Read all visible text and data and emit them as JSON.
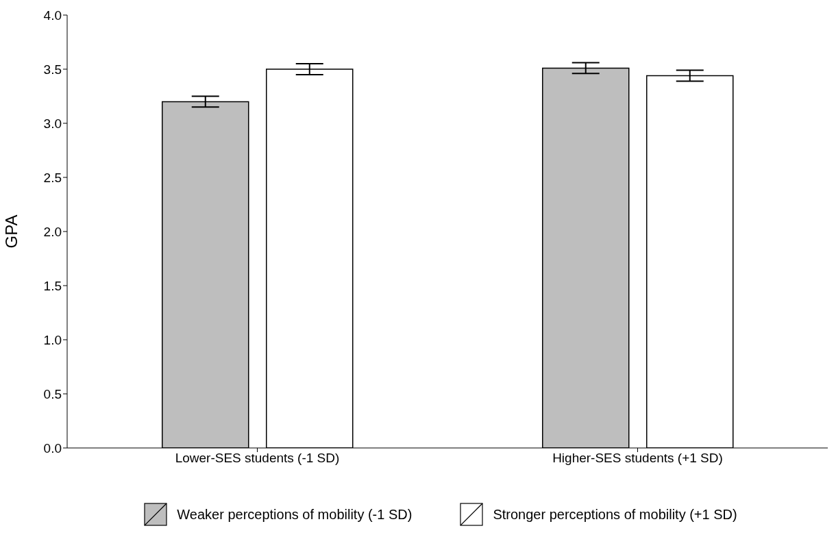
{
  "chart_data": {
    "type": "bar",
    "ylabel": "GPA",
    "categories": [
      "Lower-SES students (-1 SD)",
      "Higher-SES students (+1 SD)"
    ],
    "series": [
      {
        "name": "Weaker perceptions of mobility (-1 SD)",
        "color": "#bebebe",
        "values": [
          3.2,
          3.51
        ],
        "errors": [
          0.05,
          0.05
        ]
      },
      {
        "name": "Stronger perceptions of mobility (+1 SD)",
        "color": "#ffffff",
        "values": [
          3.5,
          3.44
        ],
        "errors": [
          0.05,
          0.05
        ]
      }
    ],
    "ylim": [
      0,
      4
    ],
    "yticks": [
      {
        "value": 0,
        "label": "0.0"
      },
      {
        "value": 0.5,
        "label": "0.5"
      },
      {
        "value": 1,
        "label": "1.0"
      },
      {
        "value": 1.5,
        "label": "1.5"
      },
      {
        "value": 2,
        "label": "2.0"
      },
      {
        "value": 2.5,
        "label": "2.5"
      },
      {
        "value": 3,
        "label": "3.0"
      },
      {
        "value": 3.5,
        "label": "3.5"
      },
      {
        "value": 4,
        "label": "4.0"
      }
    ],
    "grid": false,
    "legend": "bottom"
  }
}
